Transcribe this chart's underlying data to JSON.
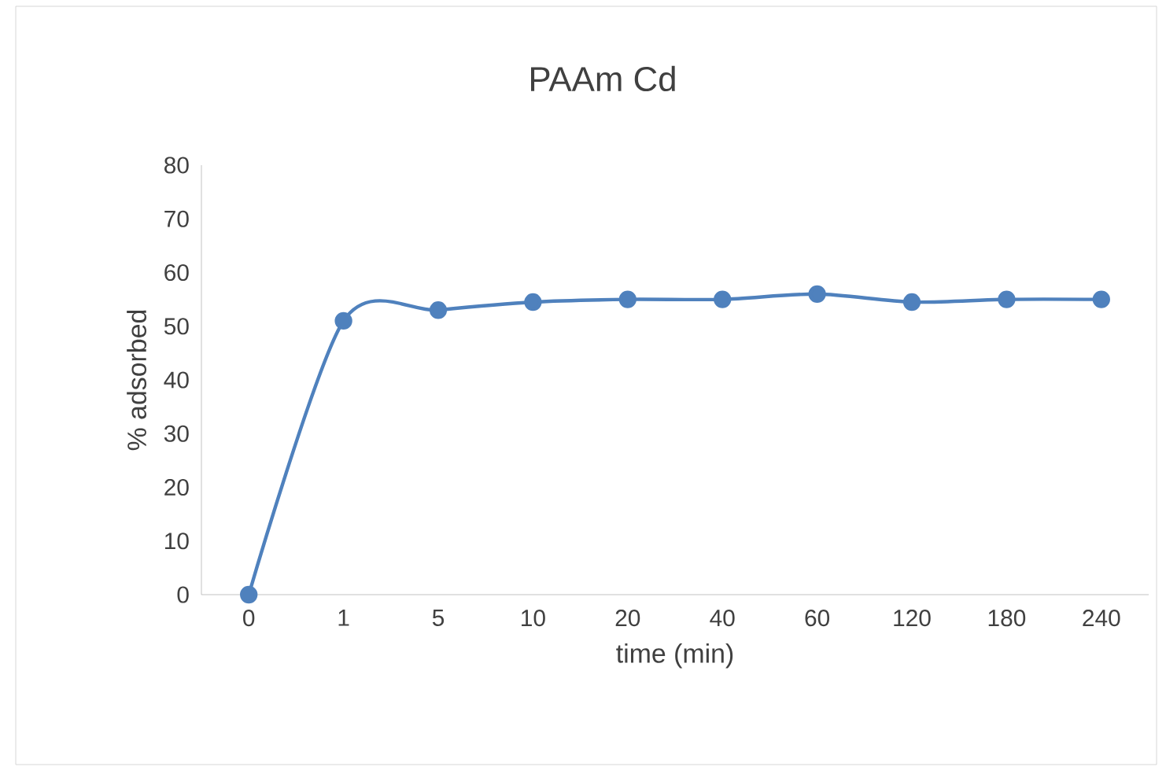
{
  "chart_data": {
    "type": "line",
    "title": "PAAm Cd",
    "xlabel": "time (min)",
    "ylabel": "% adsorbed",
    "categories": [
      "0",
      "1",
      "5",
      "10",
      "20",
      "40",
      "60",
      "120",
      "180",
      "240"
    ],
    "series": [
      {
        "color": "#4f81bd",
        "values": [
          0,
          51,
          53,
          54.5,
          55,
          55,
          56,
          54.5,
          55,
          55
        ]
      }
    ],
    "ylim": [
      0,
      80
    ],
    "yticks": [
      0,
      10,
      20,
      30,
      40,
      50,
      60,
      70,
      80
    ],
    "marker": "circle",
    "line_style": "solid",
    "grid": false
  }
}
